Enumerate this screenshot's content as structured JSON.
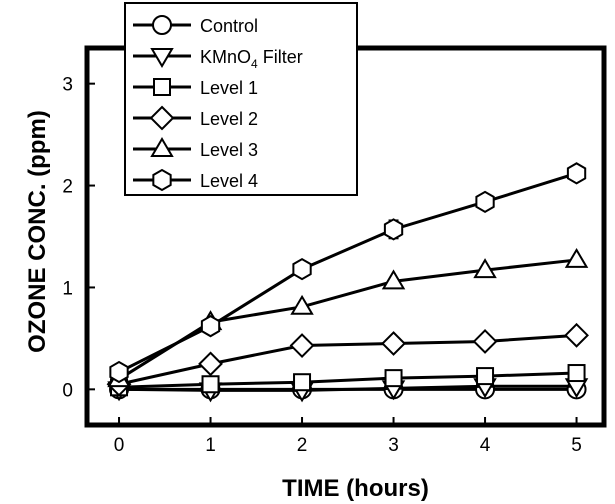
{
  "chart_data": {
    "type": "line",
    "title": "",
    "xlabel": "TIME (hours)",
    "ylabel": "OZONE CONC. (ppm)",
    "xlim": [
      -0.35,
      5.3
    ],
    "ylim": [
      -0.35,
      3.35
    ],
    "x_ticks": [
      "0",
      "1",
      "2",
      "3",
      "4",
      "5"
    ],
    "y_ticks": [
      "0",
      "1",
      "2",
      "3"
    ],
    "legend_position": "top-left",
    "series": [
      {
        "name": "Control",
        "marker": "circle",
        "x": [
          0,
          1,
          2,
          3,
          4,
          5
        ],
        "y": [
          0.0,
          0.0,
          0.0,
          0.0,
          0.0,
          0.0
        ]
      },
      {
        "name": "KMnO4 Filter",
        "marker": "triangle-down",
        "x": [
          0,
          1,
          2,
          3,
          4,
          5
        ],
        "y": [
          0.0,
          -0.01,
          -0.01,
          0.01,
          0.03,
          0.03
        ]
      },
      {
        "name": "Level 1",
        "marker": "square",
        "x": [
          0,
          1,
          2,
          3,
          4,
          5
        ],
        "y": [
          0.02,
          0.05,
          0.07,
          0.11,
          0.13,
          0.16
        ]
      },
      {
        "name": "Level 2",
        "marker": "diamond",
        "x": [
          0,
          1,
          2,
          3,
          4,
          5
        ],
        "y": [
          0.05,
          0.25,
          0.43,
          0.45,
          0.47,
          0.53
        ]
      },
      {
        "name": "Level 3",
        "marker": "triangle-up",
        "x": [
          0,
          1,
          2,
          3,
          4,
          5
        ],
        "y": [
          0.1,
          0.66,
          0.81,
          1.06,
          1.17,
          1.27
        ]
      },
      {
        "name": "Level 4",
        "marker": "hexagon",
        "x": [
          0,
          1,
          2,
          3,
          4,
          5
        ],
        "y": [
          0.17,
          0.62,
          1.18,
          1.57,
          1.84,
          2.12
        ],
        "error": [
          0,
          0,
          0,
          0.09,
          0,
          0
        ]
      }
    ]
  }
}
